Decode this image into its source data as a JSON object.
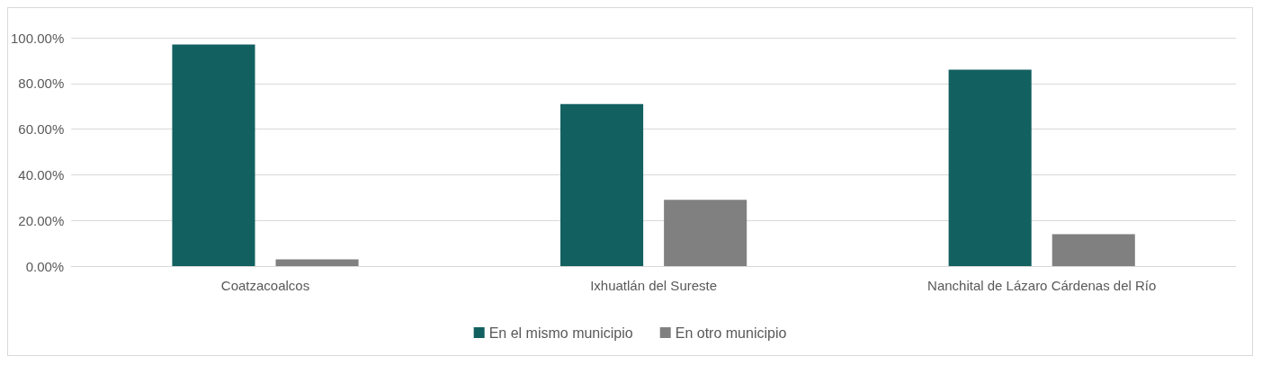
{
  "chart_data": {
    "type": "bar",
    "categories": [
      "Coatzacoalcos",
      "Ixhuatlán del Sureste",
      "Nanchital de Lázaro Cárdenas del Río"
    ],
    "series": [
      {
        "name": "En el mismo municipio",
        "color": "#12605f",
        "values": [
          97,
          71,
          86
        ]
      },
      {
        "name": "En otro municipio",
        "color": "#808080",
        "values": [
          3,
          29,
          14
        ]
      }
    ],
    "ylim": [
      0,
      100
    ],
    "yticks": [
      {
        "value": 0,
        "label": "0.00%"
      },
      {
        "value": 20,
        "label": "20.00%"
      },
      {
        "value": 40,
        "label": "40.00%"
      },
      {
        "value": 60,
        "label": "60.00%"
      },
      {
        "value": 80,
        "label": "80.00%"
      },
      {
        "value": 100,
        "label": "100.00%"
      }
    ],
    "grid": "y",
    "legend": "bottom"
  }
}
